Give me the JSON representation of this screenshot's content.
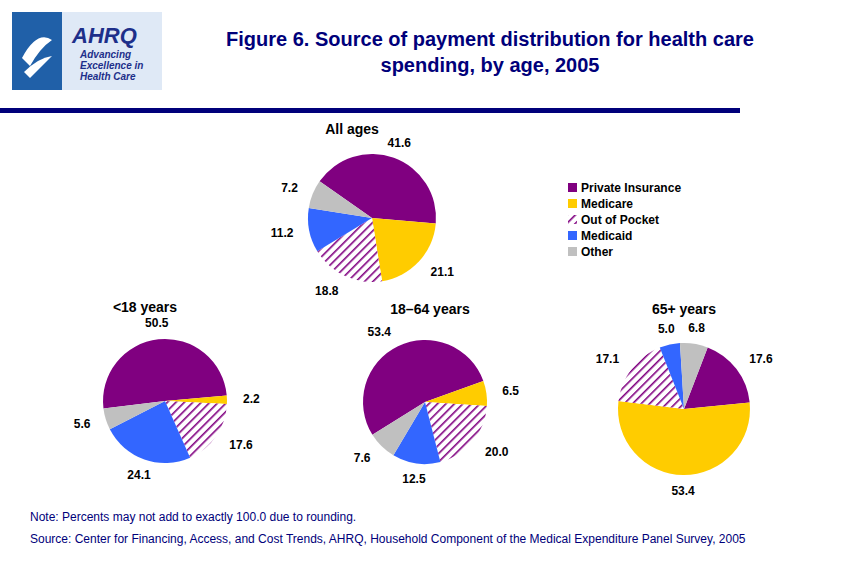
{
  "header": {
    "title": [
      "Figure 6. Source of payment distribution for health care",
      "spending, by age, 2005"
    ],
    "logo_text": "AHRQ",
    "logo_tagline": [
      "Advancing",
      "Excellence in",
      "Health Care"
    ]
  },
  "chart_data": [
    {
      "type": "pie",
      "title": "All ages",
      "categories": [
        "Private Insurance",
        "Medicare",
        "Out of Pocket",
        "Medicaid",
        "Other"
      ],
      "values": [
        41.6,
        21.1,
        18.8,
        11.2,
        7.2
      ],
      "colors": [
        "#800080",
        "#ffcc00",
        "#800080",
        "#3366ff",
        "#c0c0c0"
      ],
      "data_labels": true,
      "legend": "right"
    },
    {
      "type": "pie",
      "title": "<18 years",
      "categories": [
        "Private Insurance",
        "Medicare",
        "Out of Pocket",
        "Medicaid",
        "Other"
      ],
      "values": [
        50.5,
        2.2,
        17.6,
        24.1,
        5.6
      ],
      "colors": [
        "#800080",
        "#ffcc00",
        "#800080",
        "#3366ff",
        "#c0c0c0"
      ],
      "data_labels": true
    },
    {
      "type": "pie",
      "title": "18–64 years",
      "categories": [
        "Private Insurance",
        "Medicare",
        "Out of Pocket",
        "Medicaid",
        "Other"
      ],
      "values": [
        53.4,
        6.5,
        20.0,
        12.5,
        7.6
      ],
      "value_labels": [
        "53.4",
        "6.5",
        "20.0",
        "12.5",
        "7.6"
      ],
      "colors": [
        "#800080",
        "#ffcc00",
        "#800080",
        "#3366ff",
        "#c0c0c0"
      ],
      "data_labels": true
    },
    {
      "type": "pie",
      "title": "65+ years",
      "categories": [
        "Private Insurance",
        "Medicare",
        "Out of Pocket",
        "Medicaid",
        "Other"
      ],
      "values": [
        17.6,
        53.4,
        17.1,
        5.0,
        6.8
      ],
      "value_labels": [
        "17.6",
        "53.4",
        "17.1",
        "5.0",
        "6.8"
      ],
      "colors": [
        "#800080",
        "#ffcc00",
        "#800080",
        "#3366ff",
        "#c0c0c0"
      ],
      "data_labels": true
    }
  ],
  "footer": {
    "note": "Note: Percents may not add to exactly 100.0 due to rounding.",
    "source": "Source: Center for Financing, Access, and Cost Trends, AHRQ, Household Component of the Medical Expenditure Panel Survey, 2005"
  }
}
